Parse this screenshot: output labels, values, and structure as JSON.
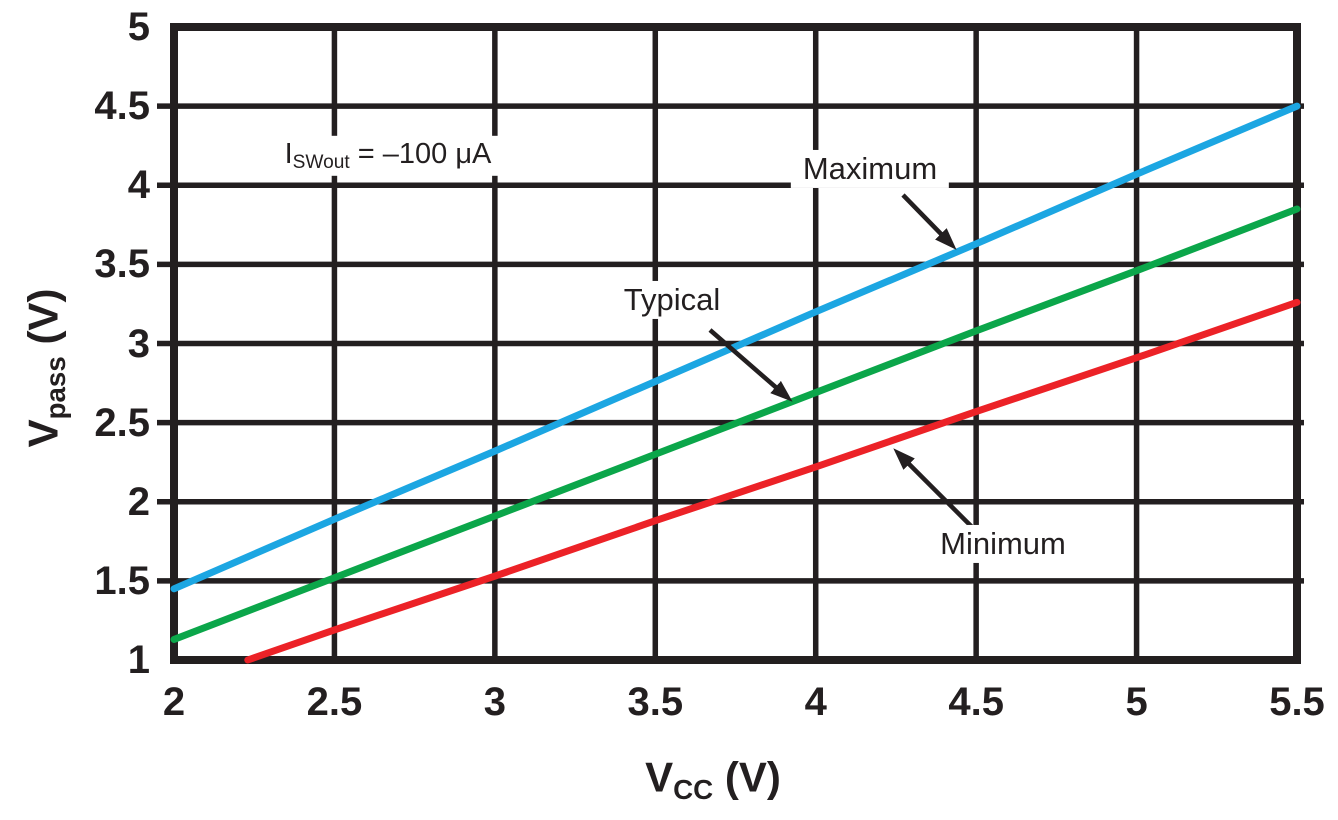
{
  "chart_data": {
    "type": "line",
    "title": "",
    "xlabel": {
      "prefix": "V",
      "sub": "CC",
      "suffix": " (V)"
    },
    "ylabel": {
      "prefix": "V",
      "sub": "pass",
      "suffix": " (V)"
    },
    "xlim": [
      2,
      5.5
    ],
    "ylim": [
      1,
      5
    ],
    "x_ticks": [
      2,
      2.5,
      3,
      3.5,
      4,
      4.5,
      5,
      5.5
    ],
    "y_ticks": [
      1,
      1.5,
      2,
      2.5,
      3,
      3.5,
      4,
      4.5,
      5
    ],
    "grid": true,
    "legend_position": "inline-labels-with-arrows",
    "annotation": {
      "prefix": "I",
      "sub": "SWout",
      "suffix": " = –100 μA"
    },
    "series": [
      {
        "name": "Maximum",
        "color": "#1CA6E2",
        "x": [
          2,
          2.5,
          3,
          3.5,
          4,
          4.5,
          5,
          5.5
        ],
        "y": [
          1.45,
          1.89,
          2.32,
          2.76,
          3.2,
          3.63,
          4.07,
          4.5
        ]
      },
      {
        "name": "Typical",
        "color": "#0BA64A",
        "x": [
          2,
          2.5,
          3,
          3.5,
          4,
          4.5,
          5,
          5.5
        ],
        "y": [
          1.13,
          1.52,
          1.91,
          2.3,
          2.69,
          3.08,
          3.46,
          3.85
        ]
      },
      {
        "name": "Minimum",
        "color": "#EC2227",
        "x": [
          2.23,
          2.5,
          3,
          3.5,
          4,
          4.5,
          5,
          5.5
        ],
        "y": [
          1.0,
          1.19,
          1.53,
          1.88,
          2.22,
          2.57,
          2.91,
          3.26
        ]
      }
    ]
  },
  "colors": {
    "ink": "#231F20",
    "background": "#FFFFFF"
  }
}
